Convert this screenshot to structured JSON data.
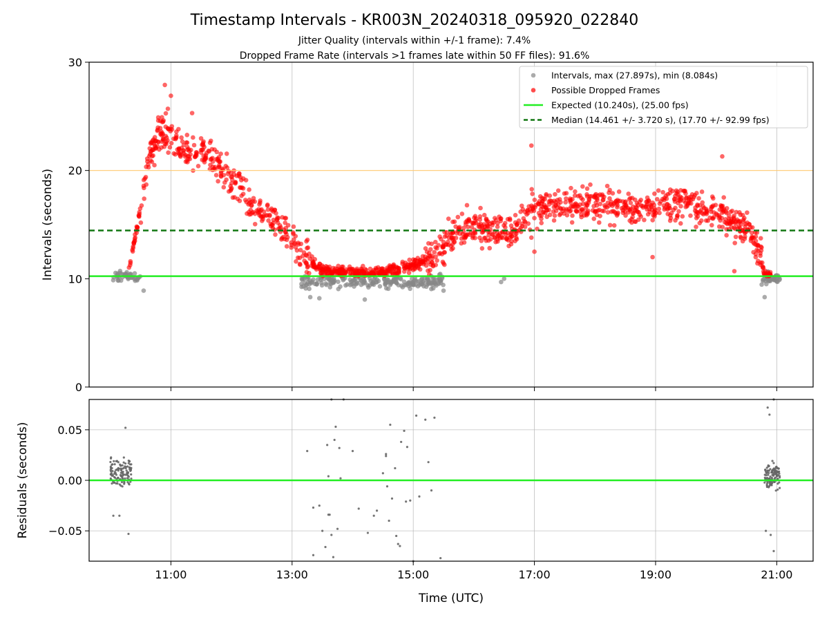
{
  "chart_data": [
    {
      "type": "scatter",
      "title": "Timestamp Intervals - KR003N_20240318_095920_022840",
      "subtitle_lines": [
        "Jitter Quality (intervals within +/-1 frame): 7.4%",
        "Dropped Frame Rate (intervals >1 frames late within 50 FF files): 91.6%"
      ],
      "ylabel": "Intervals (seconds)",
      "ylim": [
        0,
        30
      ],
      "yticks": [
        0,
        10,
        20,
        30
      ],
      "xlim": [
        9.65,
        21.6
      ],
      "xticks": [
        11,
        13,
        15,
        17,
        19,
        21
      ],
      "xtick_labels": [
        "11:00",
        "13:00",
        "15:00",
        "17:00",
        "19:00",
        "21:00"
      ],
      "grid": true,
      "legend_position": "top-right",
      "reference_lines": [
        {
          "name": "Expected (10.240s), (25.00 fps)",
          "y": 10.24,
          "style": "solid",
          "color": "#22ee22"
        },
        {
          "name": "Median (14.461 +/- 3.720 s), (17.70 +/- 92.99 fps)",
          "y": 14.461,
          "style": "dashed",
          "color": "#117711"
        },
        {
          "name": "",
          "y": 20,
          "style": "solid",
          "color": "#ffc870"
        }
      ],
      "series": [
        {
          "name": "Intervals, max (27.897s), min (8.084s)",
          "color": "#888888",
          "segments": [
            {
              "t0": 10.0,
              "t1": 10.5,
              "mean": 10.2,
              "spread": 0.45,
              "count": 45
            },
            {
              "t0": 13.15,
              "t1": 15.5,
              "mean": 9.75,
              "spread": 0.6,
              "count": 220
            },
            {
              "t0": 20.75,
              "t1": 21.05,
              "mean": 10.0,
              "spread": 0.5,
              "count": 40
            }
          ],
          "points": [
            [
              13.3,
              8.3
            ],
            [
              13.45,
              8.2
            ],
            [
              14.2,
              8.08
            ],
            [
              16.45,
              9.7
            ],
            [
              16.5,
              10.0
            ],
            [
              20.8,
              8.3
            ],
            [
              10.55,
              8.9
            ],
            [
              15.5,
              8.9
            ]
          ],
          "summary": {
            "max": 27.897,
            "min": 8.084
          }
        },
        {
          "name": "Possible Dropped Frames",
          "color": "#ff0000",
          "profile": [
            [
              10.3,
              10.6
            ],
            [
              10.45,
              15.0
            ],
            [
              10.6,
              20.5
            ],
            [
              10.8,
              23.5
            ],
            [
              11.2,
              22.0
            ],
            [
              11.6,
              21.5
            ],
            [
              12.0,
              19.0
            ],
            [
              12.4,
              16.5
            ],
            [
              12.8,
              15.0
            ],
            [
              13.2,
              12.0
            ],
            [
              13.5,
              10.7
            ],
            [
              14.0,
              10.6
            ],
            [
              14.5,
              10.6
            ],
            [
              15.0,
              11.3
            ],
            [
              15.3,
              12.0
            ],
            [
              15.6,
              13.5
            ],
            [
              15.9,
              15.0
            ],
            [
              16.3,
              14.5
            ],
            [
              16.6,
              14.0
            ],
            [
              17.0,
              16.5
            ],
            [
              17.5,
              17.0
            ],
            [
              18.0,
              17.0
            ],
            [
              18.5,
              16.7
            ],
            [
              19.0,
              16.8
            ],
            [
              19.5,
              17.0
            ],
            [
              20.0,
              16.0
            ],
            [
              20.4,
              15.0
            ],
            [
              20.6,
              14.0
            ],
            [
              20.7,
              12.5
            ],
            [
              20.8,
              10.4
            ],
            [
              20.9,
              10.3
            ]
          ],
          "count": 1500,
          "points": [
            [
              10.9,
              27.9
            ],
            [
              11.0,
              26.9
            ],
            [
              10.95,
              25.7
            ],
            [
              11.35,
              25.3
            ],
            [
              16.95,
              22.3
            ],
            [
              20.3,
              10.7
            ],
            [
              20.1,
              21.3
            ],
            [
              18.95,
              12.0
            ],
            [
              17.0,
              12.5
            ],
            [
              16.95,
              13.8
            ]
          ]
        }
      ]
    },
    {
      "type": "scatter",
      "xlabel": "Time (UTC)",
      "ylabel": "Residuals (seconds)",
      "ylim": [
        -0.08,
        0.08
      ],
      "yticks": [
        -0.05,
        0.0,
        0.05
      ],
      "ytick_labels": [
        "−0.05",
        "0.00",
        "0.05"
      ],
      "xlim": [
        9.65,
        21.6
      ],
      "xticks": [
        11,
        13,
        15,
        17,
        19,
        21
      ],
      "xtick_labels": [
        "11:00",
        "13:00",
        "15:00",
        "17:00",
        "19:00",
        "21:00"
      ],
      "grid": true,
      "reference_lines": [
        {
          "y": 0.0,
          "style": "solid",
          "color": "#22ee22"
        }
      ],
      "series": [
        {
          "color": "#666666",
          "segments": [
            {
              "t0": 10.0,
              "t1": 10.35,
              "mean": 0.008,
              "spread": 0.025,
              "count": 120
            },
            {
              "t0": 20.8,
              "t1": 21.05,
              "mean": 0.005,
              "spread": 0.025,
              "count": 110
            }
          ],
          "points": [
            [
              13.25,
              0.029
            ],
            [
              13.35,
              -0.027
            ],
            [
              13.35,
              -0.074
            ],
            [
              13.45,
              -0.025
            ],
            [
              13.5,
              -0.05
            ],
            [
              13.55,
              -0.066
            ],
            [
              13.58,
              0.035
            ],
            [
              13.6,
              0.004
            ],
            [
              13.6,
              -0.034
            ],
            [
              13.62,
              -0.034
            ],
            [
              13.65,
              0.082
            ],
            [
              13.65,
              -0.054
            ],
            [
              13.68,
              -0.076
            ],
            [
              13.7,
              0.04
            ],
            [
              13.72,
              0.053
            ],
            [
              13.75,
              -0.048
            ],
            [
              13.78,
              0.032
            ],
            [
              13.8,
              0.002
            ],
            [
              13.85,
              0.08
            ],
            [
              14.0,
              0.029
            ],
            [
              14.1,
              -0.028
            ],
            [
              14.25,
              -0.052
            ],
            [
              14.35,
              -0.035
            ],
            [
              14.4,
              -0.03
            ],
            [
              14.5,
              0.007
            ],
            [
              14.55,
              0.026
            ],
            [
              14.55,
              0.024
            ],
            [
              14.57,
              -0.006
            ],
            [
              14.6,
              -0.04
            ],
            [
              14.62,
              0.055
            ],
            [
              14.65,
              -0.018
            ],
            [
              14.7,
              0.012
            ],
            [
              14.72,
              -0.055
            ],
            [
              14.75,
              -0.063
            ],
            [
              14.78,
              -0.065
            ],
            [
              14.8,
              0.038
            ],
            [
              14.85,
              0.049
            ],
            [
              14.88,
              -0.021
            ],
            [
              14.9,
              0.033
            ],
            [
              14.95,
              -0.02
            ],
            [
              15.0,
              -0.08
            ],
            [
              15.05,
              0.064
            ],
            [
              15.1,
              -0.016
            ],
            [
              15.2,
              0.06
            ],
            [
              15.25,
              0.018
            ],
            [
              15.3,
              -0.01
            ],
            [
              15.35,
              0.062
            ],
            [
              15.45,
              -0.077
            ],
            [
              10.3,
              -0.053
            ],
            [
              10.05,
              -0.035
            ],
            [
              10.15,
              -0.035
            ],
            [
              10.25,
              0.052
            ],
            [
              20.95,
              -0.07
            ],
            [
              20.9,
              -0.054
            ],
            [
              20.82,
              -0.05
            ],
            [
              20.85,
              0.072
            ],
            [
              20.88,
              0.065
            ],
            [
              20.95,
              0.082
            ]
          ]
        }
      ]
    }
  ],
  "legend": [
    {
      "label": "Intervals, max (27.897s), min (8.084s)",
      "kind": "marker",
      "color": "#888888"
    },
    {
      "label": "Possible Dropped Frames",
      "kind": "marker",
      "color": "#ff0000"
    },
    {
      "label": "Expected (10.240s), (25.00 fps)",
      "kind": "line",
      "color": "#22ee22"
    },
    {
      "label": "Median (14.461 +/- 3.720 s), (17.70 +/- 92.99 fps)",
      "kind": "dashed",
      "color": "#117711"
    }
  ]
}
